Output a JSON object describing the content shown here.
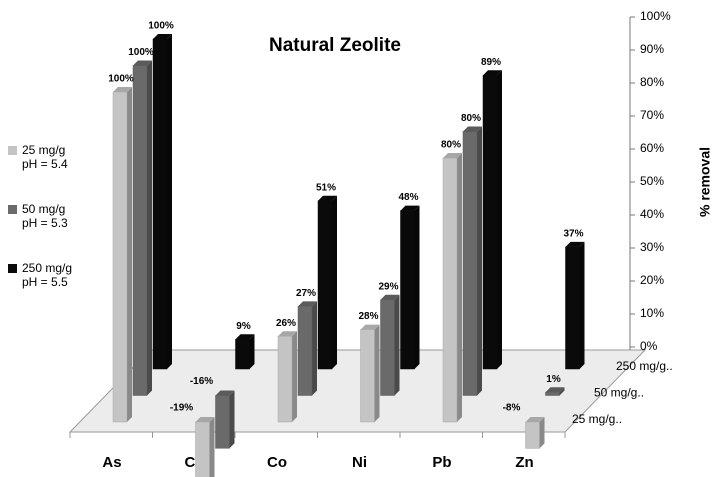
{
  "chart_data": {
    "type": "bar3d",
    "title": "Natural Zeolite",
    "y_label": "% removal",
    "categories": [
      "As",
      "Cd",
      "Co",
      "Ni",
      "Pb",
      "Zn"
    ],
    "depth_labels": [
      "250 mg/g..",
      "50 mg/g..",
      "25 mg/g.."
    ],
    "series": [
      {
        "name": "25 mg/g\npH = 5.4",
        "color": "#c4c4c4",
        "values": [
          100,
          -19,
          26,
          28,
          80,
          -8
        ],
        "value_labels": [
          "100%",
          "-19%",
          "26%",
          "28%",
          "80%",
          "-8%"
        ]
      },
      {
        "name": "50 mg/g\npH = 5.3",
        "color": "#6a6a6a",
        "values": [
          100,
          -16,
          27,
          29,
          80,
          1
        ],
        "value_labels": [
          "100%",
          "-16%",
          "27%",
          "29%",
          "80%",
          "1%"
        ]
      },
      {
        "name": "250 mg/g\npH = 5.5",
        "color": "#0a0a0a",
        "values": [
          100,
          9,
          51,
          48,
          89,
          37
        ],
        "value_labels": [
          "100%",
          "9%",
          "51%",
          "48%",
          "89%",
          "37%"
        ]
      }
    ],
    "ylim": [
      0,
      100
    ],
    "yticks": [
      {
        "value": 0,
        "label": "0%"
      },
      {
        "value": 10,
        "label": "10%"
      },
      {
        "value": 20,
        "label": "20%"
      },
      {
        "value": 30,
        "label": "30%"
      },
      {
        "value": 40,
        "label": "40%"
      },
      {
        "value": 50,
        "label": "50%"
      },
      {
        "value": 60,
        "label": "60%"
      },
      {
        "value": 70,
        "label": "70%"
      },
      {
        "value": 80,
        "label": "80%"
      },
      {
        "value": 90,
        "label": "90%"
      },
      {
        "value": 100,
        "label": "100%"
      }
    ],
    "grid": false,
    "legend": "left"
  }
}
